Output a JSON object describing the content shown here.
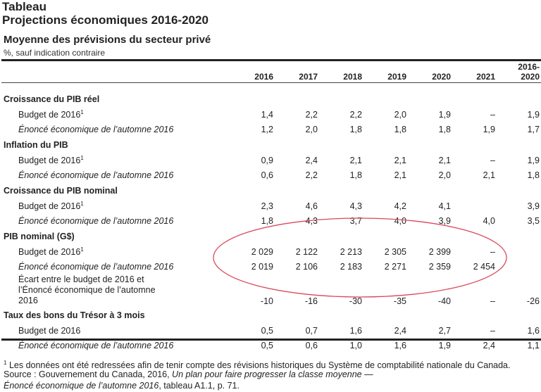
{
  "title_label": "Tableau",
  "title": "Projections économiques 2016-2020",
  "subtitle": "Moyenne des prévisions du secteur privé",
  "unit_note": "%, sauf indication contraire",
  "columns": [
    "2016",
    "2017",
    "2018",
    "2019",
    "2020",
    "2021",
    "2016-\n2020"
  ],
  "sections": [
    {
      "label": "Croissance du PIB réel",
      "rows": [
        {
          "label": "Budget de 2016",
          "sup": "1",
          "italic": false,
          "values": [
            "1,4",
            "2,2",
            "2,2",
            "2,0",
            "1,9",
            "–",
            "1,9"
          ]
        },
        {
          "label": "Énoncé économique de l’automne 2016",
          "sup": "",
          "italic": true,
          "values": [
            "1,2",
            "2,0",
            "1,8",
            "1,8",
            "1,8",
            "1,9",
            "1,7"
          ]
        }
      ]
    },
    {
      "label": "Inflation du PIB",
      "rows": [
        {
          "label": "Budget de 2016",
          "sup": "1",
          "italic": false,
          "values": [
            "0,9",
            "2,4",
            "2,1",
            "2,1",
            "2,1",
            "–",
            "1,9"
          ]
        },
        {
          "label": "Énoncé économique de l’automne 2016",
          "sup": "",
          "italic": true,
          "values": [
            "0,6",
            "2,2",
            "1,8",
            "2,1",
            "2,0",
            "2,1",
            "1,8"
          ]
        }
      ]
    },
    {
      "label": "Croissance du PIB nominal",
      "rows": [
        {
          "label": "Budget de 2016",
          "sup": "1",
          "italic": false,
          "values": [
            "2,3",
            "4,6",
            "4,3",
            "4,2",
            "4,1",
            "",
            "3,9"
          ]
        },
        {
          "label": "Énoncé économique de l’automne 2016",
          "sup": "",
          "italic": true,
          "values": [
            "1,8",
            "4,3",
            "3,7",
            "4,0",
            "3,9",
            "4,0",
            "3,5"
          ]
        }
      ]
    },
    {
      "label": "PIB nominal (G$)",
      "rows": [
        {
          "label": "Budget de 2016",
          "sup": "1",
          "italic": false,
          "values": [
            "2 029",
            "2 122",
            "2 213",
            "2 305",
            "2 399",
            "–",
            ""
          ]
        },
        {
          "label": "Énoncé économique de l’automne 2016",
          "sup": "",
          "italic": true,
          "values": [
            "2 019",
            "2 106",
            "2 183",
            "2 271",
            "2 359",
            "2 454",
            ""
          ]
        },
        {
          "label": "Écart entre le budget de 2016 et l’Énoncé économique de l’automne 2016",
          "sup": "",
          "italic": false,
          "tall": true,
          "values": [
            "-10",
            "-16",
            "-30",
            "-35",
            "-40",
            "–",
            "-26"
          ]
        }
      ]
    },
    {
      "label": "Taux des bons du Trésor à 3 mois",
      "rows": [
        {
          "label": "Budget de 2016",
          "sup": "",
          "italic": false,
          "values": [
            "0,5",
            "0,7",
            "1,6",
            "2,4",
            "2,7",
            "–",
            "1,6"
          ]
        },
        {
          "label": "Énoncé économique de l’automne 2016",
          "sup": "",
          "italic": true,
          "values": [
            "0,5",
            "0,6",
            "1,0",
            "1,6",
            "1,9",
            "2,4",
            "1,1"
          ]
        }
      ]
    }
  ],
  "footnotes": {
    "note1_marker": "1",
    "note1": "Les données ont été redressées afin de tenir compte des révisions historiques du Système de comptabilité nationale du Canada.",
    "source_prefix": "Source : Gouvernement du Canada, 2016, ",
    "source_title1": "Un plan pour faire progresser la classe moyenne —",
    "source_title2": "Énoncé économique de l’automne 2016",
    "source_suffix": ", tableau A1.1, p. 71."
  },
  "annotation_color": "#d9485a"
}
